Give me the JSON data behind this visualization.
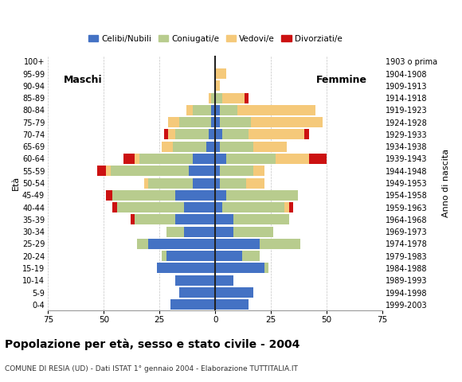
{
  "age_groups": [
    "0-4",
    "5-9",
    "10-14",
    "15-19",
    "20-24",
    "25-29",
    "30-34",
    "35-39",
    "40-44",
    "45-49",
    "50-54",
    "55-59",
    "60-64",
    "65-69",
    "70-74",
    "75-79",
    "80-84",
    "85-89",
    "90-94",
    "95-99",
    "100+"
  ],
  "birth_years": [
    "1999-2003",
    "1994-1998",
    "1989-1993",
    "1984-1988",
    "1979-1983",
    "1974-1978",
    "1969-1973",
    "1964-1968",
    "1959-1963",
    "1954-1958",
    "1949-1953",
    "1944-1948",
    "1939-1943",
    "1934-1938",
    "1929-1933",
    "1924-1928",
    "1919-1923",
    "1914-1918",
    "1909-1913",
    "1904-1908",
    "1903 o prima"
  ],
  "colors": {
    "celibi": "#4472c4",
    "coniugati": "#b8cc8e",
    "vedovi": "#f5c97a",
    "divorziati": "#cc1111"
  },
  "males": {
    "celibi": [
      20,
      16,
      18,
      26,
      22,
      30,
      14,
      18,
      14,
      18,
      10,
      12,
      10,
      4,
      3,
      2,
      2,
      0,
      0,
      0,
      0
    ],
    "coniugati": [
      0,
      0,
      0,
      0,
      2,
      5,
      8,
      18,
      30,
      28,
      20,
      35,
      24,
      15,
      15,
      14,
      8,
      2,
      0,
      0,
      0
    ],
    "vedovi": [
      0,
      0,
      0,
      0,
      0,
      0,
      0,
      0,
      0,
      0,
      2,
      2,
      2,
      5,
      3,
      5,
      3,
      1,
      0,
      0,
      0
    ],
    "divorziati": [
      0,
      0,
      0,
      0,
      0,
      0,
      0,
      2,
      2,
      3,
      0,
      4,
      5,
      0,
      2,
      0,
      0,
      0,
      0,
      0,
      0
    ]
  },
  "females": {
    "celibi": [
      15,
      17,
      8,
      22,
      12,
      20,
      8,
      8,
      3,
      5,
      2,
      2,
      5,
      2,
      3,
      2,
      2,
      0,
      0,
      0,
      0
    ],
    "coniugati": [
      0,
      0,
      0,
      2,
      8,
      18,
      18,
      25,
      28,
      32,
      12,
      15,
      22,
      15,
      12,
      14,
      8,
      3,
      0,
      0,
      0
    ],
    "vedovi": [
      0,
      0,
      0,
      0,
      0,
      0,
      0,
      0,
      2,
      0,
      8,
      5,
      15,
      15,
      25,
      32,
      35,
      10,
      2,
      5,
      0
    ],
    "divorziati": [
      0,
      0,
      0,
      0,
      0,
      0,
      0,
      0,
      2,
      0,
      0,
      0,
      8,
      0,
      2,
      0,
      0,
      2,
      0,
      0,
      0
    ]
  },
  "xlim": 75,
  "title": "Popolazione per età, sesso e stato civile - 2004",
  "subtitle": "COMUNE DI RESIA (UD) - Dati ISTAT 1° gennaio 2004 - Elaborazione TUTTITALIA.IT",
  "xlabel_left": "Maschi",
  "xlabel_right": "Femmine",
  "ylabel": "Età",
  "ylabel_right": "Anno di nascita",
  "legend_labels": [
    "Celibi/Nubili",
    "Coniugati/e",
    "Vedovi/e",
    "Divorziati/e"
  ],
  "bg_color": "#ffffff",
  "grid_color": "#aaaaaa",
  "bar_height": 0.85
}
